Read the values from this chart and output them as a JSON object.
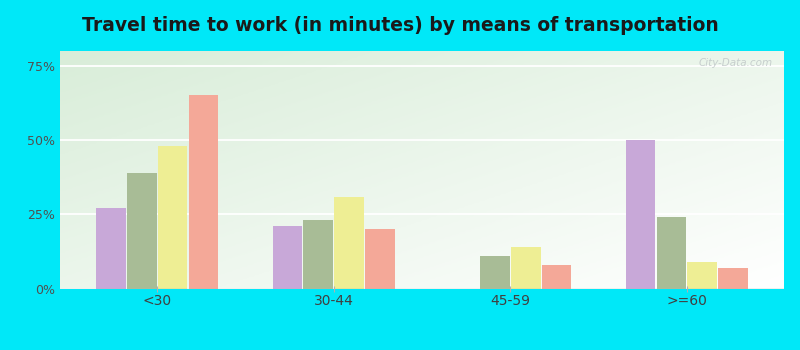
{
  "title": "Travel time to work (in minutes) by means of transportation",
  "categories": [
    "<30",
    "30-44",
    "45-59",
    ">=60"
  ],
  "series": {
    "pub_trans_lavergne": [
      27,
      21,
      0,
      50
    ],
    "pub_trans_tennessee": [
      39,
      23,
      11,
      24
    ],
    "other_lavergne": [
      48,
      31,
      14,
      9
    ],
    "other_tennessee": [
      65,
      20,
      8,
      7
    ]
  },
  "colors": {
    "pub_trans_lavergne": "#c8a8d8",
    "pub_trans_tennessee": "#a8bc96",
    "other_lavergne": "#eeee94",
    "other_tennessee": "#f4a898"
  },
  "ylim": [
    0,
    80
  ],
  "yticks": [
    0,
    25,
    50,
    75
  ],
  "ytick_labels": [
    "0%",
    "25%",
    "50%",
    "75%"
  ],
  "outer_background": "#00e8f8",
  "plot_bg_top": "#f8fdf8",
  "plot_bg_bottom": "#d8efd8",
  "title_fontsize": 13.5,
  "watermark": "City-Data.com"
}
